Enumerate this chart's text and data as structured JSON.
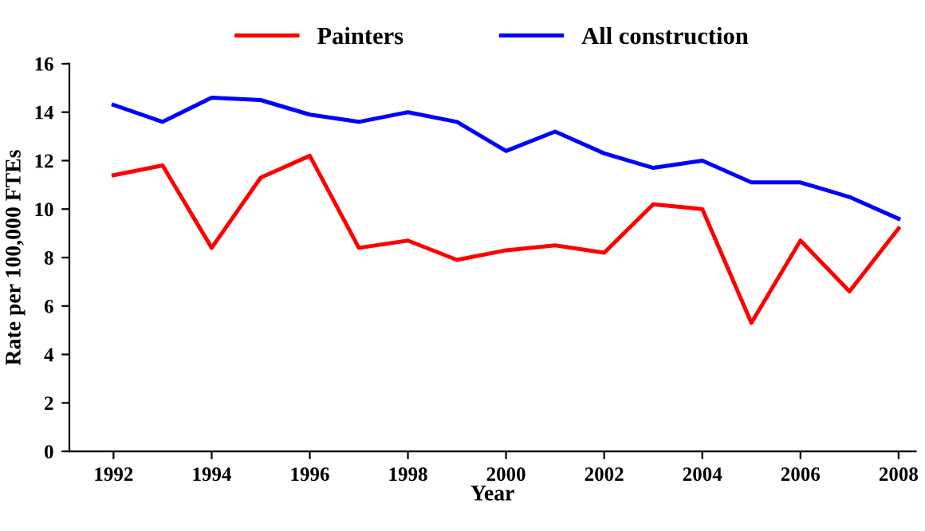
{
  "chart_data": {
    "type": "line",
    "xlabel": "Year",
    "ylabel": "Rate per 100,000 FTEs",
    "x": [
      1992,
      1993,
      1994,
      1995,
      1996,
      1997,
      1998,
      1999,
      2000,
      2001,
      2002,
      2003,
      2004,
      2005,
      2006,
      2007,
      2008
    ],
    "series": [
      {
        "name": "Painters",
        "color": "#ff0000",
        "values": [
          11.4,
          11.8,
          8.4,
          11.3,
          12.2,
          8.4,
          8.7,
          7.9,
          8.3,
          8.5,
          8.2,
          10.2,
          10.0,
          5.3,
          8.7,
          6.6,
          9.2
        ]
      },
      {
        "name": "All construction",
        "color": "#0000ff",
        "values": [
          14.3,
          13.6,
          14.6,
          14.5,
          13.9,
          13.6,
          14.0,
          13.6,
          12.4,
          13.2,
          12.3,
          11.7,
          12.0,
          11.1,
          11.1,
          10.5,
          9.6
        ]
      }
    ],
    "xlim": [
      1991.1,
      2008.35
    ],
    "xticks": [
      1992,
      1994,
      1996,
      1998,
      2000,
      2002,
      2004,
      2006,
      2008
    ],
    "ylim": [
      0,
      16
    ],
    "yticks": [
      0,
      2,
      4,
      6,
      8,
      10,
      12,
      14,
      16
    ],
    "legend": "top",
    "grid": false,
    "marker": "none",
    "line_style": "solid"
  }
}
